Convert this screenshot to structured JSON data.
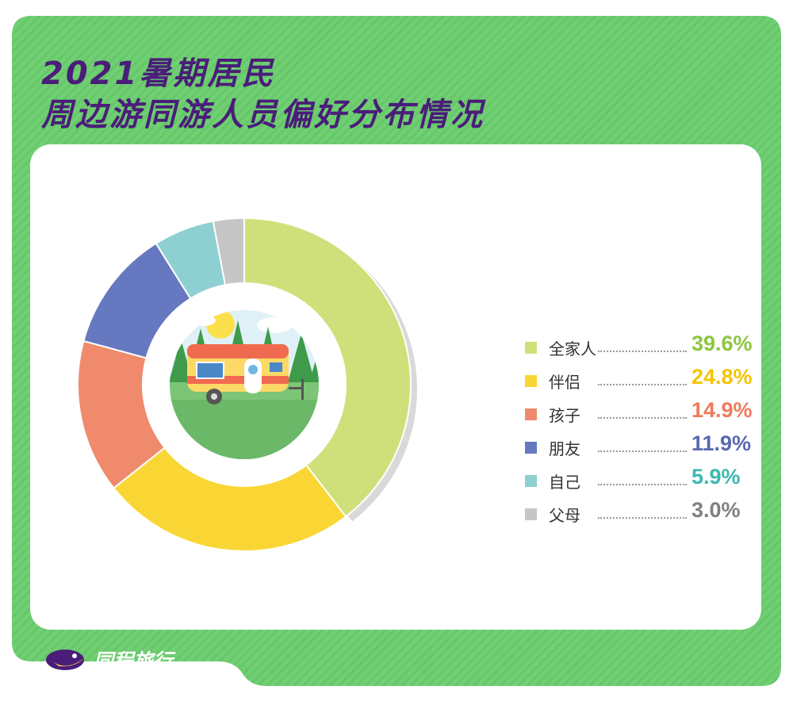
{
  "title": {
    "line1": "2021暑期居民",
    "line2": "周边游同游人员偏好分布情况"
  },
  "colors": {
    "frame": "#6fcf72",
    "title": "#4a1d7a",
    "card": "#ffffff"
  },
  "chart_data": {
    "type": "pie",
    "variant": "donut",
    "title": "2021暑期居民周边游同游人员偏好分布情况",
    "unit": "%",
    "categories": [
      "全家人",
      "伴侣",
      "孩子",
      "朋友",
      "自己",
      "父母"
    ],
    "values": [
      39.6,
      24.8,
      14.9,
      11.9,
      5.9,
      3.0
    ],
    "value_labels": [
      "39.6%",
      "24.8%",
      "14.9%",
      "11.9%",
      "5.9%",
      "3.0%"
    ],
    "colors": [
      "#cfe07a",
      "#fad634",
      "#ef8a6c",
      "#6678bf",
      "#8ed0d1",
      "#c6c6c6"
    ],
    "value_colors": [
      "#8cc63f",
      "#f5c400",
      "#ef7a5a",
      "#5868b0",
      "#3cb8b0",
      "#808080"
    ],
    "start_angle_deg": 0,
    "direction": "clockwise",
    "legend_position": "right",
    "center_illustration": "camper-van-in-forest"
  },
  "brand": {
    "name": "同程旅行",
    "logo_icon": "tongcheng-fish-logo-icon"
  }
}
